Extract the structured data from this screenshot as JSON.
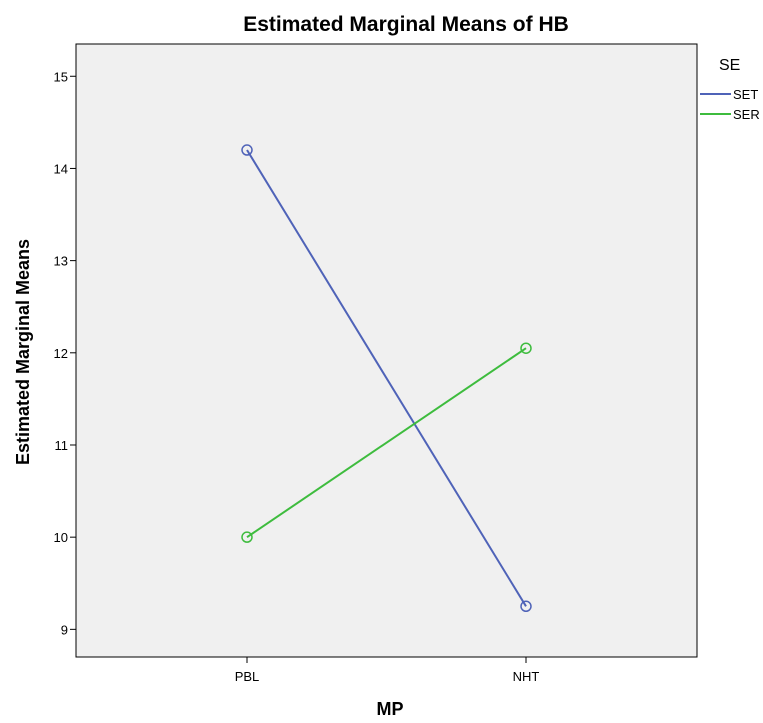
{
  "chart_data": {
    "type": "line",
    "title": "Estimated Marginal Means of HB",
    "xlabel": "MP",
    "ylabel": "Estimated Marginal Means",
    "categories": [
      "PBL",
      "NHT"
    ],
    "ylim": [
      8.7,
      15.35
    ],
    "yticks": [
      9,
      10,
      11,
      12,
      13,
      14,
      15
    ],
    "grid": false,
    "legend": {
      "title": "SE",
      "position": "right"
    },
    "plot_background": "#f0f0f0",
    "series": [
      {
        "name": "SET",
        "values": [
          14.2,
          9.25
        ],
        "color": "#4f63b8",
        "marker": "circle"
      },
      {
        "name": "SER",
        "values": [
          10.0,
          12.05
        ],
        "color": "#3ebc3e",
        "marker": "circle"
      }
    ]
  }
}
